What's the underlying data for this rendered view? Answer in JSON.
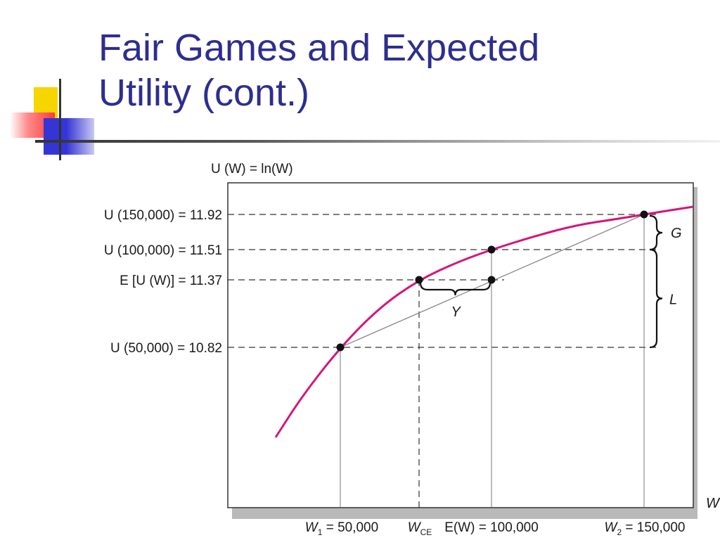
{
  "slide": {
    "title_line1": "Fair Games and Expected",
    "title_line2": "Utility (cont.)"
  },
  "colors": {
    "title": "#2e2e8f",
    "accent_yellow": "#f6d500",
    "accent_red": "#ff3b3b",
    "accent_blue": "#3535d6",
    "curve": "#d4167a"
  },
  "chart_data": {
    "type": "line",
    "title": "U (W) = ln(W)",
    "xlabel": "W",
    "ylabel": "U (W) = ln(W)",
    "function": "ln",
    "xlim": [
      20000,
      170000
    ],
    "series": [
      {
        "values_note_free": true
      }
    ],
    "curve_x_range": [
      25000,
      175000
    ],
    "x_ticks": [
      {
        "x": 50000,
        "label_main": "W",
        "label_sub": "1",
        "label_rest": " = 50,000"
      },
      {
        "x": 73000,
        "label_main": "W",
        "label_sub": "CE",
        "label_rest": ""
      },
      {
        "x": 100000,
        "label_main": "E(W) = 100,000",
        "label_sub": "",
        "label_rest": ""
      },
      {
        "x": 150000,
        "label_main": "W",
        "label_sub": "2",
        "label_rest": " = 150,000"
      }
    ],
    "y_ticks": [
      {
        "y": 11.92,
        "label": "U (150,000) = 11.92"
      },
      {
        "y": 11.51,
        "label": "U (100,000) = 11.51"
      },
      {
        "y": 11.37,
        "label": "E [U (W)] = 11.37"
      },
      {
        "y": 10.82,
        "label": "U (50,000) = 10.82"
      }
    ],
    "points": [
      {
        "x": 50000,
        "y": 10.82
      },
      {
        "x": 73000,
        "y": 11.37
      },
      {
        "x": 100000,
        "y": 11.51
      },
      {
        "x": 100000,
        "y": 11.37
      },
      {
        "x": 150000,
        "y": 11.92
      }
    ],
    "chord": {
      "from": [
        50000,
        10.82
      ],
      "to": [
        150000,
        11.92
      ]
    },
    "annotations": [
      {
        "label": "G",
        "between_y": [
          11.51,
          11.92
        ],
        "at_x": 150000
      },
      {
        "label": "L",
        "between_y": [
          10.82,
          11.51
        ],
        "at_x": 150000
      },
      {
        "label": "Y",
        "between_x": [
          73000,
          100000
        ],
        "at_y": 11.37
      }
    ]
  }
}
